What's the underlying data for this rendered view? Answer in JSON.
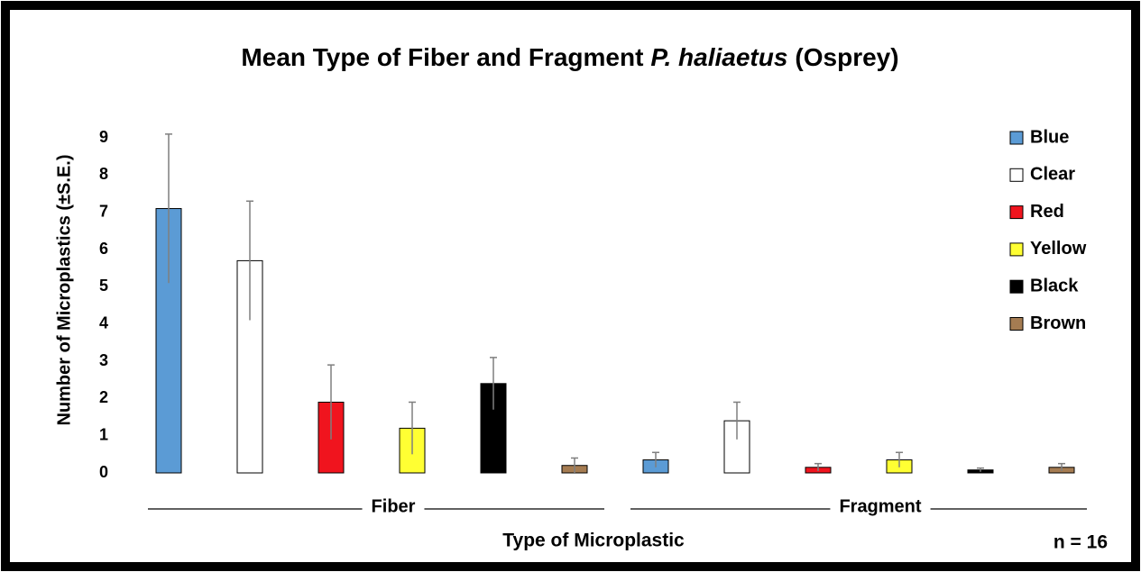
{
  "chart_data": {
    "type": "bar",
    "title": "Mean Type of Fiber and Fragment",
    "title_species": "P. haliaetus",
    "title_suffix": "(Osprey)",
    "x_label": "Type of Microplastic",
    "y_label": "Number of Microplastics (±S.E.)",
    "annotation": "n = 16",
    "categories": [
      "Fiber",
      "Fragment"
    ],
    "series": [
      {
        "name": "Blue",
        "color": "#5b9bd5",
        "values": [
          7.1,
          0.35
        ],
        "errors": [
          2.0,
          0.2
        ]
      },
      {
        "name": "Clear",
        "color": "#ffffff",
        "values": [
          5.7,
          1.4
        ],
        "errors": [
          1.6,
          0.5
        ]
      },
      {
        "name": "Red",
        "color": "#f0141e",
        "values": [
          1.9,
          0.15
        ],
        "errors": [
          1.0,
          0.1
        ]
      },
      {
        "name": "Yellow",
        "color": "#ffff33",
        "values": [
          1.2,
          0.35
        ],
        "errors": [
          0.7,
          0.2
        ]
      },
      {
        "name": "Black",
        "color": "#000000",
        "values": [
          2.4,
          0.08
        ],
        "errors": [
          0.7,
          0.05
        ]
      },
      {
        "name": "Brown",
        "color": "#a57c52",
        "values": [
          0.2,
          0.15
        ],
        "errors": [
          0.2,
          0.1
        ]
      }
    ],
    "ylim": [
      0,
      9
    ],
    "yticks": [
      0,
      1,
      2,
      3,
      4,
      5,
      6,
      7,
      8,
      9
    ],
    "grid": false,
    "legend": "right"
  }
}
